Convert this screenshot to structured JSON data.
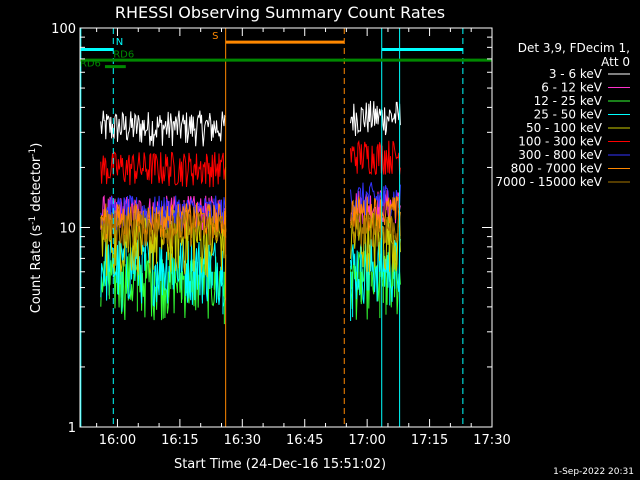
{
  "chart_data": {
    "type": "line",
    "title": "RHESSI Observing Summary Count Rates",
    "xlabel": "Start Time (24-Dec-16 15:51:02)",
    "ylabel_main": "Count Rate (s",
    "ylabel_sup": "-1",
    "ylabel_tail": " detector",
    "ylabel_sup2": "-1",
    "ylabel_end": ")",
    "yscale": "log",
    "ylim": [
      1,
      100
    ],
    "y_ticks": [
      {
        "v": 1,
        "label": "1"
      },
      {
        "v": 10,
        "label": "10"
      },
      {
        "v": 100,
        "label": "100"
      }
    ],
    "xlim_minutes": [
      951,
      1050
    ],
    "x_ticks": [
      {
        "m": 960,
        "label": "16:00"
      },
      {
        "m": 975,
        "label": "16:15"
      },
      {
        "m": 990,
        "label": "16:30"
      },
      {
        "m": 1005,
        "label": "16:45"
      },
      {
        "m": 1020,
        "label": "17:00"
      },
      {
        "m": 1035,
        "label": "17:15"
      },
      {
        "m": 1050,
        "label": "17:30"
      }
    ],
    "legend_header": [
      "Det 3,9, FDecim 1,",
      "Att 0"
    ],
    "legend_position": "right",
    "data_intervals_minutes": [
      [
        956,
        986
      ],
      [
        1016,
        1028
      ]
    ],
    "series": [
      {
        "name": "3 - 6 keV",
        "color": "#ffffff",
        "level": 32,
        "level2": 36
      },
      {
        "name": "6 - 12 keV",
        "color": "#ff33cc",
        "level": 12,
        "level2": 13
      },
      {
        "name": "12 - 25 keV",
        "color": "#33ff33",
        "level": 5.5,
        "level2": 5.5
      },
      {
        "name": "25 - 50 keV",
        "color": "#00ffff",
        "level": 6.5,
        "level2": 6.5
      },
      {
        "name": "50 - 100 keV",
        "color": "#cccc00",
        "level": 9,
        "level2": 9
      },
      {
        "name": "100 - 300 keV",
        "color": "#ff0000",
        "level": 20,
        "level2": 23
      },
      {
        "name": "300 - 800 keV",
        "color": "#3333ff",
        "level": 12,
        "level2": 14
      },
      {
        "name": "800 - 7000 keV",
        "color": "#ff8800",
        "level": 11,
        "level2": 12
      },
      {
        "name": "7000 - 15000 keV",
        "color": "#aa7700",
        "level": 10,
        "level2": 10
      }
    ],
    "vertical_markers": [
      {
        "m": 951.2,
        "color": "#00ffff",
        "style": "solid"
      },
      {
        "m": 959.0,
        "color": "#00ffff",
        "style": "dashed"
      },
      {
        "m": 986.0,
        "color": "#ff8800",
        "style": "solid"
      },
      {
        "m": 1014.5,
        "color": "#ff8800",
        "style": "dashed"
      },
      {
        "m": 1023.5,
        "color": "#00ffff",
        "style": "solid"
      },
      {
        "m": 1027.8,
        "color": "#00ffff",
        "style": "solid"
      },
      {
        "m": 1043.0,
        "color": "#00ffff",
        "style": "dashed"
      }
    ],
    "bars": [
      {
        "label": "N",
        "color": "#00ffff",
        "y": 78,
        "segments": [
          [
            951,
            959
          ],
          [
            1023.5,
            1043
          ]
        ]
      },
      {
        "label": "S",
        "color": "#ff8800",
        "y": 85,
        "segments": [
          [
            986,
            1014.5
          ]
        ]
      },
      {
        "label": "RD6",
        "color": "#008800",
        "y": 69,
        "segments": [
          [
            951,
            1050
          ]
        ]
      },
      {
        "label": "RD6",
        "color": "#008800",
        "y": 64,
        "segments": [
          [
            957,
            962
          ]
        ]
      }
    ],
    "bar_labels": [
      {
        "text": "N",
        "m": 960.5,
        "y": 82,
        "color": "#00ffff"
      },
      {
        "text": "RD6",
        "m": 961.5,
        "y": 71,
        "color": "#008800"
      },
      {
        "text": "RD6",
        "m": 953.5,
        "y": 64,
        "color": "#008800"
      },
      {
        "text": "S",
        "m": 983.5,
        "y": 88,
        "color": "#ff8800"
      }
    ],
    "timestamp": "1-Sep-2022 20:31"
  }
}
